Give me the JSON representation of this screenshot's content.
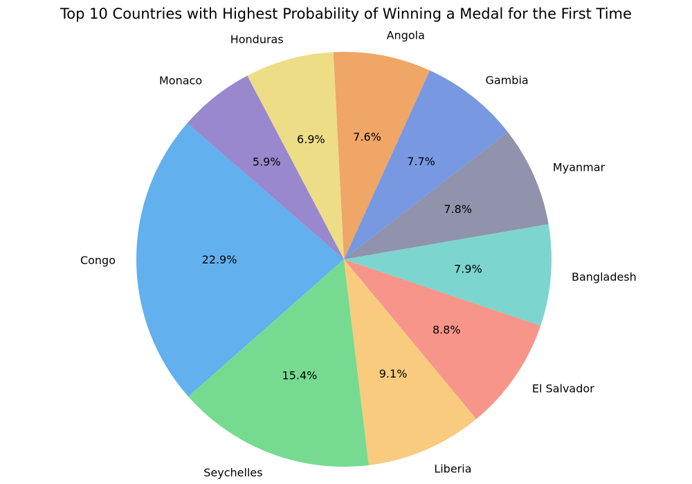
{
  "chart_data": {
    "type": "pie",
    "title": "Top 10 Countries with Highest Probability of Winning a Medal for the First Time",
    "start_angle_deg": 139,
    "direction": "counterclockwise",
    "slices": [
      {
        "label": "Congo",
        "value": 22.9,
        "pct_label": "22.9%",
        "color": "#62b0ee"
      },
      {
        "label": "Seychelles",
        "value": 15.4,
        "pct_label": "15.4%",
        "color": "#76db91"
      },
      {
        "label": "Liberia",
        "value": 9.1,
        "pct_label": "9.1%",
        "color": "#f8cb7f"
      },
      {
        "label": "El Salvador",
        "value": 8.8,
        "pct_label": "8.8%",
        "color": "#f8958a"
      },
      {
        "label": "Bangladesh",
        "value": 7.9,
        "pct_label": "7.9%",
        "color": "#7cd5cf"
      },
      {
        "label": "Myanmar",
        "value": 7.8,
        "pct_label": "7.8%",
        "color": "#9192ab"
      },
      {
        "label": "Gambia",
        "value": 7.7,
        "pct_label": "7.7%",
        "color": "#7898e1"
      },
      {
        "label": "Angola",
        "value": 7.6,
        "pct_label": "7.6%",
        "color": "#efa666"
      },
      {
        "label": "Honduras",
        "value": 6.9,
        "pct_label": "6.9%",
        "color": "#eddd86"
      },
      {
        "label": "Monaco",
        "value": 5.9,
        "pct_label": "5.9%",
        "color": "#9988cd"
      }
    ]
  }
}
